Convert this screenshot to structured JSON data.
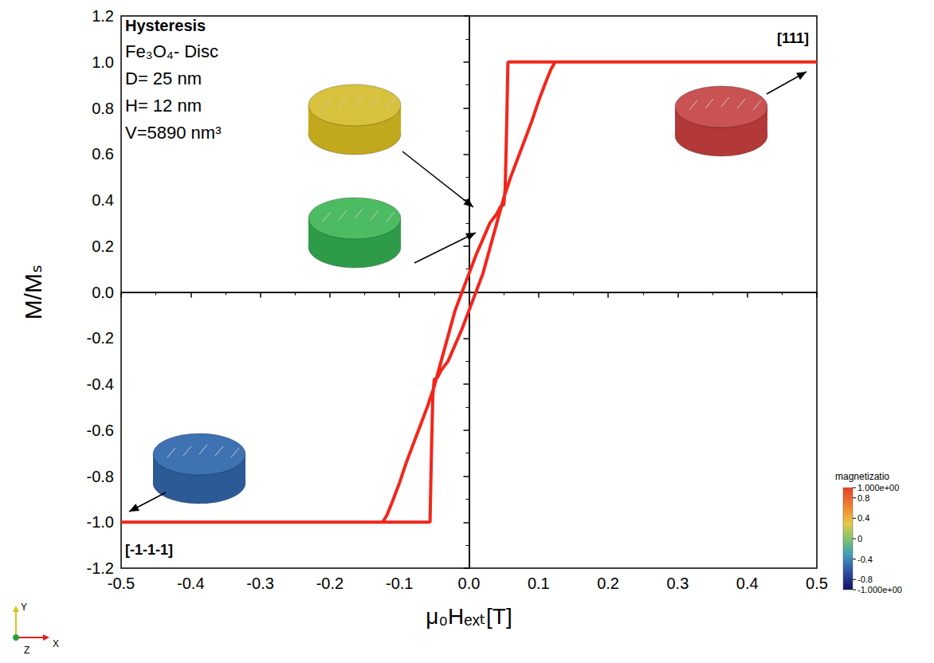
{
  "chart_data": {
    "type": "line",
    "x_label": "μ₀Hₑₓₜ[T]",
    "y_label": "M/Mₛ",
    "xlim": [
      -0.5,
      0.5
    ],
    "xticks": [
      -0.5,
      -0.4,
      -0.3,
      -0.2,
      -0.1,
      {
        "value": 0,
        "label": "0.0"
      },
      0.1,
      0.2,
      0.3,
      0.4,
      0.5
    ],
    "ylim": [
      -1.2,
      1.2
    ],
    "yticks": [
      -1.2,
      {
        "value": -1,
        "label": "-1.0"
      },
      -0.8,
      -0.6,
      -0.4,
      -0.2,
      {
        "value": 0,
        "label": "0.0"
      },
      0.2,
      0.4,
      0.6,
      0.8,
      {
        "value": 1,
        "label": "1.0"
      },
      1.2
    ],
    "grid": false,
    "series": [
      {
        "color": "#f2261b",
        "line_style": "solid",
        "marker": "none",
        "x": [
          0.5,
          0.3,
          0.1,
          0.06,
          0.056,
          0.054,
          0.052,
          0.05,
          0.045,
          0.04,
          0.03,
          0.02,
          0.01,
          0,
          -0.01,
          -0.02,
          -0.03,
          -0.04,
          -0.05,
          -0.06,
          -0.07,
          -0.08,
          -0.09,
          -0.1,
          -0.11,
          -0.118,
          -0.124,
          -0.3,
          -0.5,
          -0.3,
          -0.1,
          -0.06,
          -0.056,
          -0.054,
          -0.052,
          -0.05,
          -0.045,
          -0.04,
          -0.03,
          -0.02,
          -0.01,
          0,
          0.01,
          0.02,
          0.03,
          0.04,
          0.05,
          0.06,
          0.07,
          0.08,
          0.09,
          0.1,
          0.11,
          0.118,
          0.124,
          0.3,
          0.5
        ],
        "values": [
          1,
          1,
          1,
          1,
          1,
          0.7,
          0.45,
          0.38,
          0.37,
          0.34,
          0.3,
          0.23,
          0.16,
          0.08,
          0,
          -0.08,
          -0.19,
          -0.3,
          -0.41,
          -0.5,
          -0.58,
          -0.66,
          -0.74,
          -0.83,
          -0.91,
          -0.97,
          -1,
          -1,
          -1,
          -1,
          -1,
          -1,
          -1,
          -0.7,
          -0.45,
          -0.38,
          -0.37,
          -0.34,
          -0.3,
          -0.23,
          -0.16,
          -0.08,
          0,
          0.08,
          0.19,
          0.3,
          0.41,
          0.5,
          0.58,
          0.66,
          0.74,
          0.83,
          0.91,
          0.97,
          1,
          1,
          1
        ]
      }
    ],
    "annotations": {
      "heading": "Hysteresis",
      "lines": [
        "Fe₃O₄- Disc",
        "D= 25 nm",
        "H= 12 nm",
        "V=5890 nm³"
      ],
      "direction_top": "[111]",
      "direction_bottom": "[-1-1-1]"
    },
    "colorbar": {
      "title": "magnetizatio",
      "range": [
        -1,
        1
      ],
      "ticks": [
        {
          "value": 1,
          "label": "1.000e+00"
        },
        0.8,
        0.4,
        0,
        -0.4,
        -0.8,
        {
          "value": -1,
          "label": "-1.000e+00"
        }
      ]
    },
    "triad": {
      "x": "X",
      "y": "Y",
      "z": "Z"
    }
  }
}
